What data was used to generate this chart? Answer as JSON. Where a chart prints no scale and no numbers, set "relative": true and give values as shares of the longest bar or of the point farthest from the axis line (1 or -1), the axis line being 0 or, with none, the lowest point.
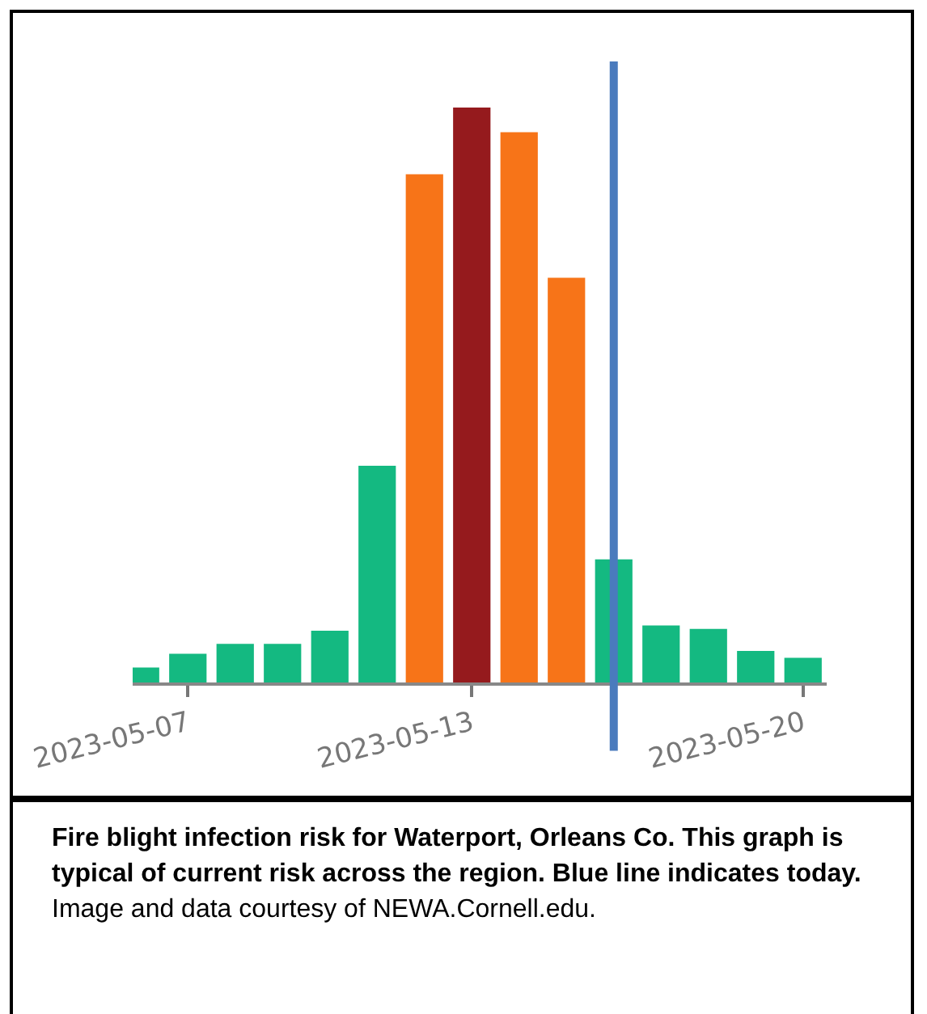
{
  "chart_data": {
    "type": "bar",
    "relative": true,
    "tick_labels": "x",
    "x": [
      "2023-05-06",
      "2023-05-07",
      "2023-05-08",
      "2023-05-09",
      "2023-05-10",
      "2023-05-11",
      "2023-05-12",
      "2023-05-13",
      "2023-05-14",
      "2023-05-15",
      "2023-05-16",
      "2023-05-17",
      "2023-05-18",
      "2023-05-19",
      "2023-05-20"
    ],
    "values": [
      0.026,
      0.05,
      0.067,
      0.067,
      0.09,
      0.377,
      0.884,
      1,
      0.957,
      0.704,
      0.214,
      0.099,
      0.093,
      0.055,
      0.043
    ],
    "colors": [
      "#14b981",
      "#14b981",
      "#14b981",
      "#14b981",
      "#14b981",
      "#14b981",
      "#f77418",
      "#951a1d",
      "#f77418",
      "#f77418",
      "#14b981",
      "#14b981",
      "#14b981",
      "#14b981",
      "#14b981"
    ],
    "xlim": [
      "2023-05-05T20:00",
      "2023-05-20T12:00"
    ],
    "xticks": [
      {
        "value": "2023-05-07",
        "label": "2023-05-07"
      },
      {
        "value": "2023-05-13",
        "label": "2023-05-13"
      },
      {
        "value": "2023-05-20",
        "label": "2023-05-20"
      }
    ],
    "ref_lines": [
      {
        "axis": "x",
        "value": "2023-05-16",
        "label": null,
        "color": "#4a7bbd"
      }
    ],
    "annotations": [
      "Fire blight infection risk for Waterport, Orleans Co. This graph is typical of current risk across the region. Blue line indicates today.",
      "Image and data courtesy of NEWA.Cornell.edu."
    ]
  }
}
